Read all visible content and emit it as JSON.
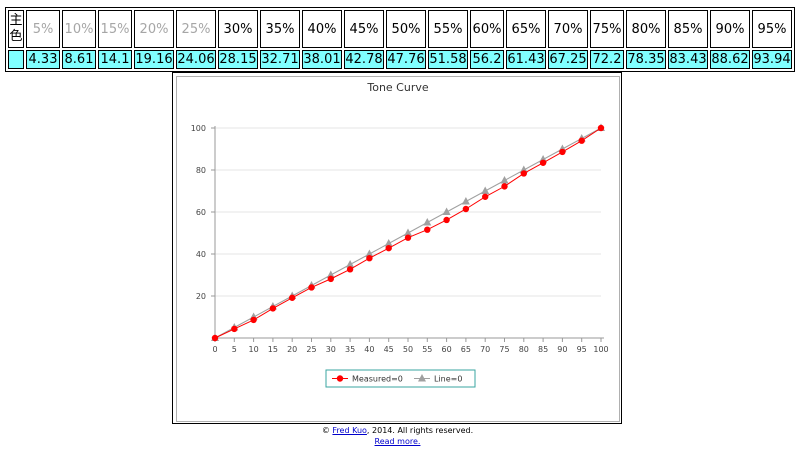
{
  "table": {
    "corner": [
      "主",
      "色"
    ],
    "headers": [
      "5%",
      "10%",
      "15%",
      "20%",
      "25%",
      "30%",
      "35%",
      "40%",
      "45%",
      "50%",
      "55%",
      "60%",
      "65%",
      "70%",
      "75%",
      "80%",
      "85%",
      "90%",
      "95%"
    ],
    "header_dark_from": 5,
    "values": [
      "4.33",
      "8.61",
      "14.1",
      "19.16",
      "24.06",
      "28.15",
      "32.71",
      "38.01",
      "42.78",
      "47.76",
      "51.58",
      "56.2",
      "61.43",
      "67.25",
      "72.2",
      "78.35",
      "83.43",
      "88.62",
      "93.94"
    ],
    "value_bg": "#80ffff"
  },
  "chart_data": {
    "type": "line",
    "title": "Tone Curve",
    "x": [
      0,
      5,
      10,
      15,
      20,
      25,
      30,
      35,
      40,
      45,
      50,
      55,
      60,
      65,
      70,
      75,
      80,
      85,
      90,
      95,
      100
    ],
    "series": [
      {
        "name": "Measured=0",
        "color": "#ff0000",
        "marker": "circle",
        "values": [
          0,
          4.33,
          8.61,
          14.1,
          19.16,
          24.06,
          28.15,
          32.71,
          38.01,
          42.78,
          47.76,
          51.58,
          56.2,
          61.43,
          67.25,
          72.2,
          78.35,
          83.43,
          88.62,
          93.94,
          100
        ]
      },
      {
        "name": "Line=0",
        "color": "#a0a0a0",
        "marker": "triangle",
        "values": [
          0,
          5,
          10,
          15,
          20,
          25,
          30,
          35,
          40,
          45,
          50,
          55,
          60,
          65,
          70,
          75,
          80,
          85,
          90,
          95,
          100
        ]
      }
    ],
    "xticks": [
      "0",
      "5",
      "10",
      "15",
      "20",
      "25",
      "30",
      "35",
      "40",
      "45",
      "50",
      "55",
      "60",
      "65",
      "70",
      "75",
      "80",
      "85",
      "90",
      "95",
      "100"
    ],
    "yticks": [
      "20",
      "40",
      "60",
      "80",
      "100"
    ],
    "xlim": [
      0,
      100
    ],
    "ylim": [
      0,
      100
    ],
    "grid": true,
    "legend_position": "bottom-center"
  },
  "footer": {
    "copyright": "©",
    "author": "Fred Kuo",
    "rights": ", 2014. All rights reserved.",
    "read_more": "Read more."
  }
}
